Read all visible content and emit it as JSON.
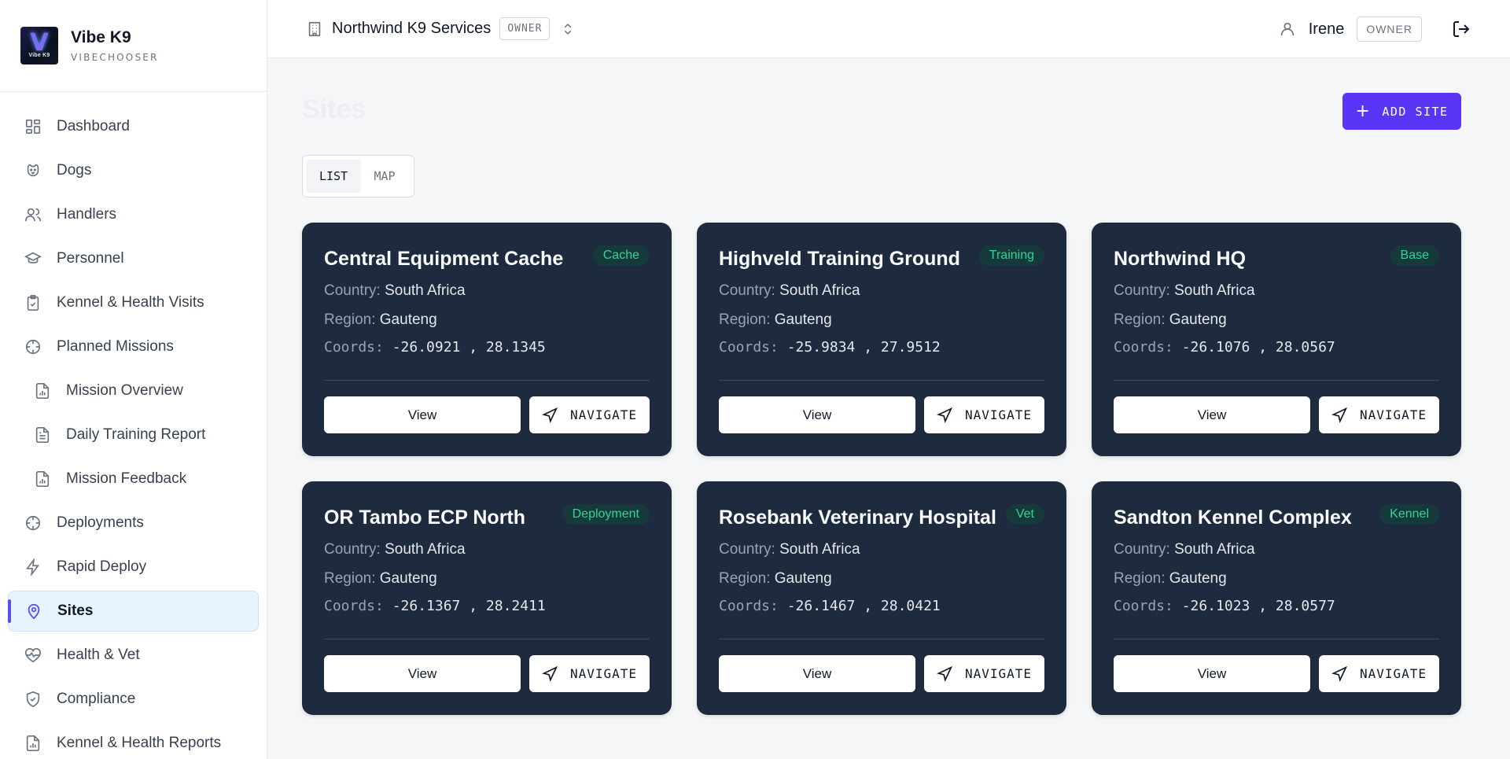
{
  "brand": {
    "logo_text": "Vibe K9",
    "title": "Vibe K9",
    "subtitle": "VIBECHOOSER"
  },
  "sidebar": {
    "items": [
      {
        "label": "Dashboard",
        "icon": "dashboard-icon"
      },
      {
        "label": "Dogs",
        "icon": "paw-icon"
      },
      {
        "label": "Handlers",
        "icon": "users-icon"
      },
      {
        "label": "Personnel",
        "icon": "graduation-cap-icon"
      },
      {
        "label": "Kennel & Health Visits",
        "icon": "clipboard-icon"
      },
      {
        "label": "Planned Missions",
        "icon": "crosshair-icon"
      },
      {
        "label": "Mission Overview",
        "icon": "file-chart-icon"
      },
      {
        "label": "Daily Training Report",
        "icon": "file-text-icon"
      },
      {
        "label": "Mission Feedback",
        "icon": "file-chart-icon"
      },
      {
        "label": "Deployments",
        "icon": "crosshair-icon"
      },
      {
        "label": "Rapid Deploy",
        "icon": "zap-icon"
      },
      {
        "label": "Sites",
        "icon": "map-pin-icon"
      },
      {
        "label": "Health & Vet",
        "icon": "heart-pulse-icon"
      },
      {
        "label": "Compliance",
        "icon": "shield-check-icon"
      },
      {
        "label": "Kennel & Health Reports",
        "icon": "file-chart-icon"
      }
    ],
    "active": "Sites"
  },
  "header": {
    "org_name": "Northwind K9 Services",
    "org_role": "OWNER",
    "user_name": "Irene",
    "user_role": "OWNER"
  },
  "main": {
    "title": "Sites",
    "add_button": "ADD SITE",
    "view_toggle": {
      "list": "LIST",
      "map": "MAP",
      "selected": "LIST"
    },
    "labels": {
      "country": "Country:",
      "region": "Region:",
      "coords": "Coords:",
      "view": "View",
      "navigate": "NAVIGATE"
    },
    "sites": [
      {
        "name": "Central Equipment Cache",
        "type": "Cache",
        "country": "South Africa",
        "region": "Gauteng",
        "coords": "-26.0921 , 28.1345"
      },
      {
        "name": "Highveld Training Ground",
        "type": "Training",
        "country": "South Africa",
        "region": "Gauteng",
        "coords": "-25.9834 , 27.9512"
      },
      {
        "name": "Northwind HQ",
        "type": "Base",
        "country": "South Africa",
        "region": "Gauteng",
        "coords": "-26.1076 , 28.0567"
      },
      {
        "name": "OR Tambo ECP North",
        "type": "Deployment",
        "country": "South Africa",
        "region": "Gauteng",
        "coords": "-26.1367 , 28.2411"
      },
      {
        "name": "Rosebank Veterinary Hospital",
        "type": "Vet",
        "country": "South Africa",
        "region": "Gauteng",
        "coords": "-26.1467 , 28.0421"
      },
      {
        "name": "Sandton Kennel Complex",
        "type": "Kennel",
        "country": "South Africa",
        "region": "Gauteng",
        "coords": "-26.1023 , 28.0577"
      }
    ]
  },
  "colors": {
    "accent": "#5b35f5",
    "card_bg": "#1e2a3d",
    "tag_text": "#34d399",
    "active_nav_bg": "#e8f4fd"
  }
}
